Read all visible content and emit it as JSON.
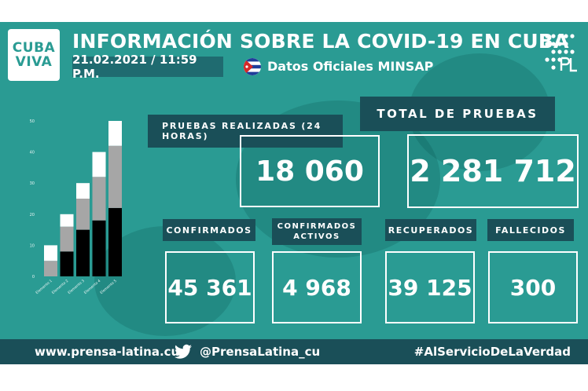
{
  "logo": {
    "line1": "CUBA",
    "line2": "VIVA"
  },
  "header": {
    "title": "INFORMACIÓN SOBRE LA COVID-19 EN CUBA",
    "date": "21.02.2021 / 11:59 P.M.",
    "source": "Datos Oficiales MINSAP",
    "flag_icon": "cuba-flag-icon",
    "pl_icon": "prensa-latina-logo-icon"
  },
  "stats": {
    "pruebas_label": "PRUEBAS REALIZADAS (24 HORAS)",
    "pruebas_value": "18 060",
    "total_label": "TOTAL DE PRUEBAS",
    "total_value": "2 281 712",
    "confirmados_label": "CONFIRMADOS",
    "confirmados_value": "45 361",
    "activos_label": "CONFIRMADOS ACTIVOS",
    "activos_value": "4 968",
    "recuperados_label": "RECUPERADOS",
    "recuperados_value": "39 125",
    "fallecidos_label": "FALLECIDOS",
    "fallecidos_value": "300"
  },
  "chart_data": {
    "type": "bar",
    "stacked": true,
    "categories": [
      "Elemento 1",
      "Elemento 2",
      "Elemento 3",
      "Elemento 4",
      "Elemento 5"
    ],
    "series": [
      {
        "values": [
          0,
          8,
          15,
          18,
          22
        ],
        "color": "#000000"
      },
      {
        "values": [
          5,
          8,
          10,
          14,
          20
        ],
        "color": "#a6a6a6"
      },
      {
        "values": [
          5,
          4,
          5,
          8,
          8
        ],
        "color": "#ffffff"
      }
    ],
    "yticks": [
      "0",
      "10",
      "20",
      "30",
      "40",
      "50"
    ],
    "ylim": [
      0,
      50
    ]
  },
  "footer": {
    "website": "www.prensa-latina.cu",
    "twitter_icon": "twitter-bird-icon",
    "handle": "@PrensaLatina_cu",
    "hashtag": "#AlServicioDeLaVerdad"
  },
  "colors": {
    "background": "#2a9b93",
    "dark": "#1a4f58",
    "date_box": "#1f6b70"
  }
}
